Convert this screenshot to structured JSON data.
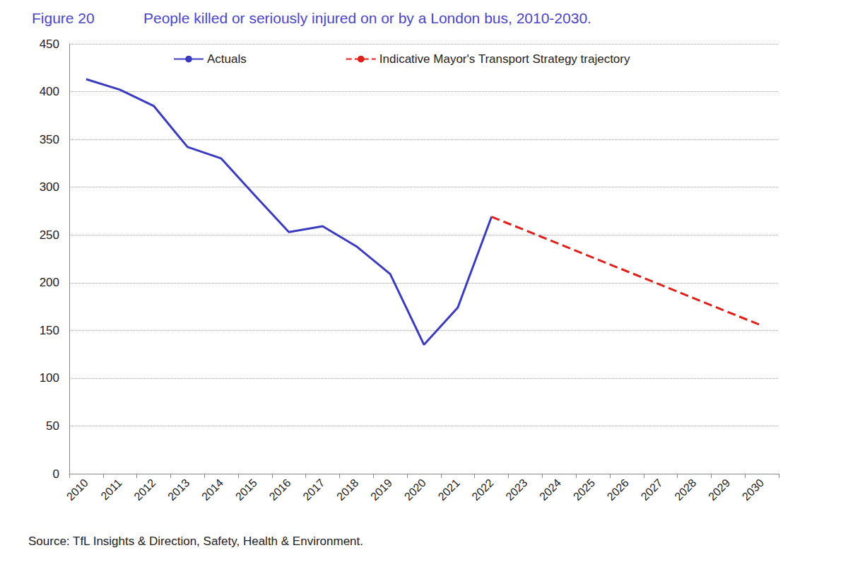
{
  "chart_data": {
    "type": "line",
    "figure_label": "Figure 20",
    "title": "People killed or seriously injured on or by a London bus, 2010-2030.",
    "source": "Source: TfL Insights & Direction, Safety, Health & Environment.",
    "categories": [
      "2010",
      "2011",
      "2012",
      "2013",
      "2014",
      "2015",
      "2016",
      "2017",
      "2018",
      "2019",
      "2020",
      "2021",
      "2022",
      "2023",
      "2024",
      "2025",
      "2026",
      "2027",
      "2028",
      "2029",
      "2030"
    ],
    "series": [
      {
        "name": "Actuals",
        "color": "#3b3bbf",
        "line_style": "solid",
        "values": [
          413,
          402,
          385,
          342,
          330,
          291,
          253,
          259,
          238,
          209,
          135,
          174,
          269,
          null,
          null,
          null,
          null,
          null,
          null,
          null,
          null
        ]
      },
      {
        "name": "Indicative Mayor's Transport Strategy trajectory",
        "color": "#e0201b",
        "line_style": "dashed",
        "values": [
          null,
          null,
          null,
          null,
          null,
          null,
          null,
          null,
          null,
          null,
          null,
          null,
          269,
          null,
          null,
          null,
          null,
          null,
          null,
          null,
          155
        ]
      }
    ],
    "ylim": [
      0,
      450
    ],
    "yticks": [
      0,
      50,
      100,
      150,
      200,
      250,
      300,
      350,
      400,
      450
    ],
    "grid": true,
    "legend": "top"
  }
}
